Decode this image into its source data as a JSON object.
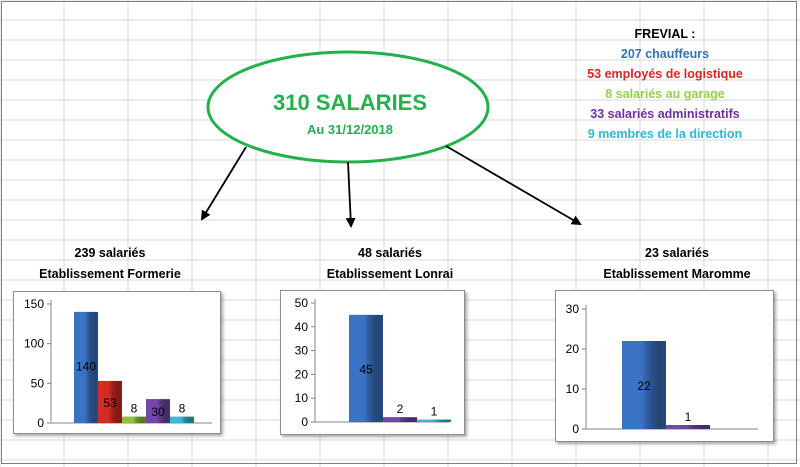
{
  "header": {
    "title": "310 SALARIES",
    "date": "Au 31/12/2018"
  },
  "legend": {
    "heading": "FREVIAL :",
    "items": [
      {
        "text": "207 chauffeurs",
        "color": "#2e75b6"
      },
      {
        "text": "53 employés de logistique",
        "color": "#e02424"
      },
      {
        "text": "8 salariés au garage",
        "color": "#92d050"
      },
      {
        "text": "33 salariés administratifs",
        "color": "#7030a0"
      },
      {
        "text": "9 membres de la direction",
        "color": "#2eb8d6"
      }
    ]
  },
  "colors": {
    "ellipse_stroke": "#22b14c",
    "title_text": "#22b14c",
    "grid": "#d9d9d9"
  },
  "sites": [
    {
      "count": "239 salariés",
      "name": "Etablissement Formerie"
    },
    {
      "count": "48 salariés",
      "name": "Etablissement Lonrai"
    },
    {
      "count": "23 salariés",
      "name": "Etablissement Maromme"
    }
  ],
  "chart_data": [
    {
      "type": "bar",
      "title": "",
      "categories": [
        "chauffeurs",
        "logistique",
        "garage",
        "administratifs",
        "direction"
      ],
      "values": [
        140,
        53,
        8,
        30,
        8
      ],
      "colors": [
        "#3b73c4",
        "#d42b23",
        "#8fc13d",
        "#7347a8",
        "#3cb8d4"
      ],
      "yticks": [
        0,
        50,
        100,
        150
      ],
      "ylim": [
        0,
        150
      ],
      "grid": false,
      "legend": "none"
    },
    {
      "type": "bar",
      "title": "",
      "categories": [
        "chauffeurs",
        "administratifs",
        "direction"
      ],
      "values": [
        45,
        2,
        1
      ],
      "colors": [
        "#3b73c4",
        "#7347a8",
        "#3cb8d4"
      ],
      "yticks": [
        0,
        10,
        20,
        30,
        40,
        50
      ],
      "ylim": [
        0,
        50
      ],
      "grid": false,
      "legend": "none"
    },
    {
      "type": "bar",
      "title": "",
      "categories": [
        "chauffeurs",
        "administratifs"
      ],
      "values": [
        22,
        1
      ],
      "colors": [
        "#3b73c4",
        "#7347a8"
      ],
      "yticks": [
        0,
        10,
        20,
        30
      ],
      "ylim": [
        0,
        30
      ],
      "grid": false,
      "legend": "none"
    }
  ]
}
